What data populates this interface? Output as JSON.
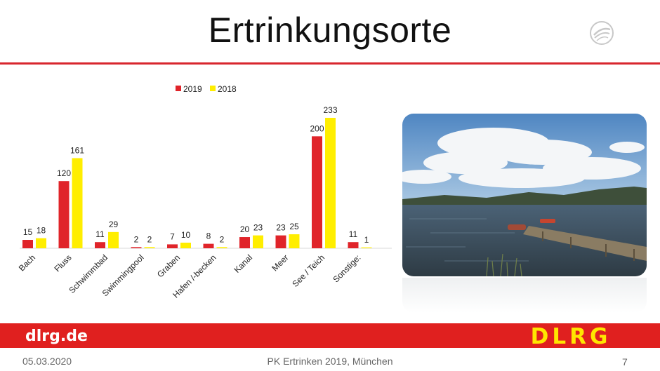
{
  "slide": {
    "title": "Ertrinkungsorte",
    "url_text": "dlrg.de",
    "brand_text": "DLRG",
    "footer_date": "05.03.2020",
    "footer_center": "PK Ertrinken 2019, München",
    "page_number": "7"
  },
  "colors": {
    "accent_red": "#e0201f",
    "series_2019": "#e0242a",
    "series_2018": "#ffee00",
    "brand_yellow": "#ffe600"
  },
  "icons": {
    "corner_logo": "dlrg-eagle-icon"
  },
  "photo": {
    "subject": "lake-with-wooden-pier"
  },
  "chart_data": {
    "type": "bar",
    "categories": [
      "Bach",
      "Fluss",
      "Schwimmbad",
      "Swimmingpool",
      "Graben",
      "Hafen /-becken",
      "Kanal",
      "Meer",
      "See / Teich",
      "Sonstige:"
    ],
    "series": [
      {
        "name": "2019",
        "values": [
          15,
          120,
          11,
          2,
          7,
          8,
          20,
          23,
          200,
          11
        ]
      },
      {
        "name": "2018",
        "values": [
          18,
          161,
          29,
          2,
          10,
          2,
          23,
          25,
          233,
          1
        ]
      }
    ],
    "ylim": [
      0,
      233
    ],
    "grid": false,
    "legend": "top"
  }
}
